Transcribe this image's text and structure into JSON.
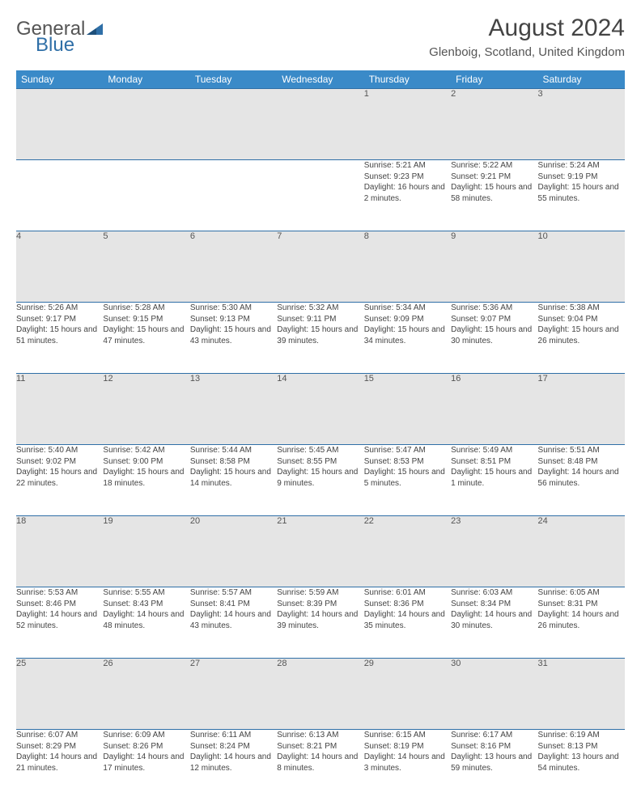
{
  "logo": {
    "text1": "General",
    "text2": "Blue"
  },
  "title": "August 2024",
  "location": "Glenboig, Scotland, United Kingdom",
  "colors": {
    "header_bg": "#3a8ac8",
    "header_text": "#ffffff",
    "rule": "#2f6fa7",
    "daynum_bg": "#e5e5e5",
    "body_text": "#444444",
    "logo_blue": "#2f6fa7",
    "logo_gray": "#555555"
  },
  "typography": {
    "title_fontsize": 30,
    "location_fontsize": 15,
    "dayheader_fontsize": 12,
    "daynum_fontsize": 11,
    "detail_fontsize": 10
  },
  "day_headers": [
    "Sunday",
    "Monday",
    "Tuesday",
    "Wednesday",
    "Thursday",
    "Friday",
    "Saturday"
  ],
  "weeks": [
    {
      "days": [
        {
          "num": "",
          "sunrise": "",
          "sunset": "",
          "daylight": ""
        },
        {
          "num": "",
          "sunrise": "",
          "sunset": "",
          "daylight": ""
        },
        {
          "num": "",
          "sunrise": "",
          "sunset": "",
          "daylight": ""
        },
        {
          "num": "",
          "sunrise": "",
          "sunset": "",
          "daylight": ""
        },
        {
          "num": "1",
          "sunrise": "Sunrise: 5:21 AM",
          "sunset": "Sunset: 9:23 PM",
          "daylight": "Daylight: 16 hours and 2 minutes."
        },
        {
          "num": "2",
          "sunrise": "Sunrise: 5:22 AM",
          "sunset": "Sunset: 9:21 PM",
          "daylight": "Daylight: 15 hours and 58 minutes."
        },
        {
          "num": "3",
          "sunrise": "Sunrise: 5:24 AM",
          "sunset": "Sunset: 9:19 PM",
          "daylight": "Daylight: 15 hours and 55 minutes."
        }
      ]
    },
    {
      "days": [
        {
          "num": "4",
          "sunrise": "Sunrise: 5:26 AM",
          "sunset": "Sunset: 9:17 PM",
          "daylight": "Daylight: 15 hours and 51 minutes."
        },
        {
          "num": "5",
          "sunrise": "Sunrise: 5:28 AM",
          "sunset": "Sunset: 9:15 PM",
          "daylight": "Daylight: 15 hours and 47 minutes."
        },
        {
          "num": "6",
          "sunrise": "Sunrise: 5:30 AM",
          "sunset": "Sunset: 9:13 PM",
          "daylight": "Daylight: 15 hours and 43 minutes."
        },
        {
          "num": "7",
          "sunrise": "Sunrise: 5:32 AM",
          "sunset": "Sunset: 9:11 PM",
          "daylight": "Daylight: 15 hours and 39 minutes."
        },
        {
          "num": "8",
          "sunrise": "Sunrise: 5:34 AM",
          "sunset": "Sunset: 9:09 PM",
          "daylight": "Daylight: 15 hours and 34 minutes."
        },
        {
          "num": "9",
          "sunrise": "Sunrise: 5:36 AM",
          "sunset": "Sunset: 9:07 PM",
          "daylight": "Daylight: 15 hours and 30 minutes."
        },
        {
          "num": "10",
          "sunrise": "Sunrise: 5:38 AM",
          "sunset": "Sunset: 9:04 PM",
          "daylight": "Daylight: 15 hours and 26 minutes."
        }
      ]
    },
    {
      "days": [
        {
          "num": "11",
          "sunrise": "Sunrise: 5:40 AM",
          "sunset": "Sunset: 9:02 PM",
          "daylight": "Daylight: 15 hours and 22 minutes."
        },
        {
          "num": "12",
          "sunrise": "Sunrise: 5:42 AM",
          "sunset": "Sunset: 9:00 PM",
          "daylight": "Daylight: 15 hours and 18 minutes."
        },
        {
          "num": "13",
          "sunrise": "Sunrise: 5:44 AM",
          "sunset": "Sunset: 8:58 PM",
          "daylight": "Daylight: 15 hours and 14 minutes."
        },
        {
          "num": "14",
          "sunrise": "Sunrise: 5:45 AM",
          "sunset": "Sunset: 8:55 PM",
          "daylight": "Daylight: 15 hours and 9 minutes."
        },
        {
          "num": "15",
          "sunrise": "Sunrise: 5:47 AM",
          "sunset": "Sunset: 8:53 PM",
          "daylight": "Daylight: 15 hours and 5 minutes."
        },
        {
          "num": "16",
          "sunrise": "Sunrise: 5:49 AM",
          "sunset": "Sunset: 8:51 PM",
          "daylight": "Daylight: 15 hours and 1 minute."
        },
        {
          "num": "17",
          "sunrise": "Sunrise: 5:51 AM",
          "sunset": "Sunset: 8:48 PM",
          "daylight": "Daylight: 14 hours and 56 minutes."
        }
      ]
    },
    {
      "days": [
        {
          "num": "18",
          "sunrise": "Sunrise: 5:53 AM",
          "sunset": "Sunset: 8:46 PM",
          "daylight": "Daylight: 14 hours and 52 minutes."
        },
        {
          "num": "19",
          "sunrise": "Sunrise: 5:55 AM",
          "sunset": "Sunset: 8:43 PM",
          "daylight": "Daylight: 14 hours and 48 minutes."
        },
        {
          "num": "20",
          "sunrise": "Sunrise: 5:57 AM",
          "sunset": "Sunset: 8:41 PM",
          "daylight": "Daylight: 14 hours and 43 minutes."
        },
        {
          "num": "21",
          "sunrise": "Sunrise: 5:59 AM",
          "sunset": "Sunset: 8:39 PM",
          "daylight": "Daylight: 14 hours and 39 minutes."
        },
        {
          "num": "22",
          "sunrise": "Sunrise: 6:01 AM",
          "sunset": "Sunset: 8:36 PM",
          "daylight": "Daylight: 14 hours and 35 minutes."
        },
        {
          "num": "23",
          "sunrise": "Sunrise: 6:03 AM",
          "sunset": "Sunset: 8:34 PM",
          "daylight": "Daylight: 14 hours and 30 minutes."
        },
        {
          "num": "24",
          "sunrise": "Sunrise: 6:05 AM",
          "sunset": "Sunset: 8:31 PM",
          "daylight": "Daylight: 14 hours and 26 minutes."
        }
      ]
    },
    {
      "days": [
        {
          "num": "25",
          "sunrise": "Sunrise: 6:07 AM",
          "sunset": "Sunset: 8:29 PM",
          "daylight": "Daylight: 14 hours and 21 minutes."
        },
        {
          "num": "26",
          "sunrise": "Sunrise: 6:09 AM",
          "sunset": "Sunset: 8:26 PM",
          "daylight": "Daylight: 14 hours and 17 minutes."
        },
        {
          "num": "27",
          "sunrise": "Sunrise: 6:11 AM",
          "sunset": "Sunset: 8:24 PM",
          "daylight": "Daylight: 14 hours and 12 minutes."
        },
        {
          "num": "28",
          "sunrise": "Sunrise: 6:13 AM",
          "sunset": "Sunset: 8:21 PM",
          "daylight": "Daylight: 14 hours and 8 minutes."
        },
        {
          "num": "29",
          "sunrise": "Sunrise: 6:15 AM",
          "sunset": "Sunset: 8:19 PM",
          "daylight": "Daylight: 14 hours and 3 minutes."
        },
        {
          "num": "30",
          "sunrise": "Sunrise: 6:17 AM",
          "sunset": "Sunset: 8:16 PM",
          "daylight": "Daylight: 13 hours and 59 minutes."
        },
        {
          "num": "31",
          "sunrise": "Sunrise: 6:19 AM",
          "sunset": "Sunset: 8:13 PM",
          "daylight": "Daylight: 13 hours and 54 minutes."
        }
      ]
    }
  ]
}
